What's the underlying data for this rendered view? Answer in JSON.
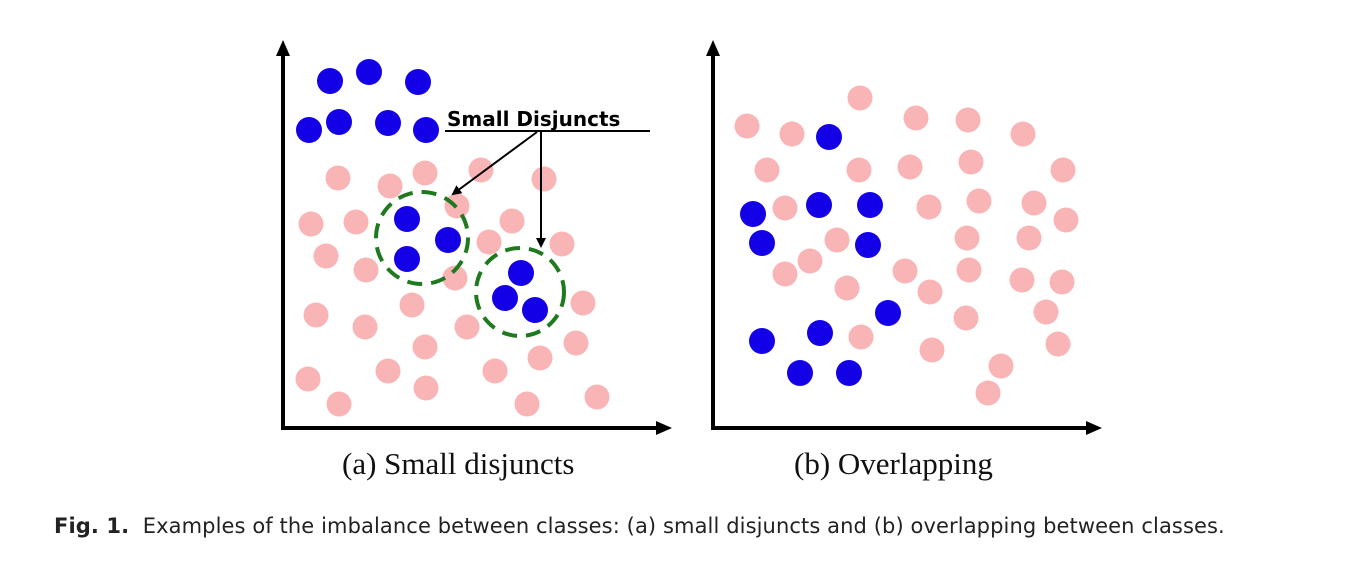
{
  "colors": {
    "majority": "#f9b4b6",
    "minority": "#1400e6",
    "disjunct_ring": "#1f7a1f",
    "axis": "#000000"
  },
  "panel_a": {
    "caption": "(a) Small disjuncts",
    "annotation": "Small Disjuncts",
    "points": {
      "minority": [
        [
          330,
          81
        ],
        [
          369,
          72
        ],
        [
          418,
          82
        ],
        [
          309,
          130
        ],
        [
          339,
          122
        ],
        [
          388,
          123
        ],
        [
          426,
          130
        ],
        [
          407,
          219
        ],
        [
          448,
          240
        ],
        [
          407,
          259
        ],
        [
          521,
          273
        ],
        [
          505,
          298
        ],
        [
          535,
          310
        ]
      ],
      "majority": [
        [
          338,
          178
        ],
        [
          390,
          186
        ],
        [
          425,
          173
        ],
        [
          481,
          170
        ],
        [
          544,
          179
        ],
        [
          311,
          224
        ],
        [
          356,
          222
        ],
        [
          457,
          206
        ],
        [
          512,
          221
        ],
        [
          489,
          242
        ],
        [
          562,
          244
        ],
        [
          326,
          256
        ],
        [
          366,
          270
        ],
        [
          455,
          278
        ],
        [
          583,
          303
        ],
        [
          316,
          315
        ],
        [
          365,
          327
        ],
        [
          412,
          305
        ],
        [
          467,
          327
        ],
        [
          576,
          343
        ],
        [
          425,
          347
        ],
        [
          540,
          358
        ],
        [
          308,
          379
        ],
        [
          388,
          371
        ],
        [
          426,
          388
        ],
        [
          495,
          371
        ],
        [
          339,
          404
        ],
        [
          527,
          404
        ],
        [
          597,
          397
        ]
      ]
    }
  },
  "panel_b": {
    "caption": "(b) Overlapping",
    "points": {
      "minority": [
        [
          829,
          137
        ],
        [
          753,
          214
        ],
        [
          819,
          205
        ],
        [
          870,
          205
        ],
        [
          762,
          243
        ],
        [
          868,
          245
        ],
        [
          888,
          313
        ],
        [
          762,
          341
        ],
        [
          820,
          333
        ],
        [
          800,
          373
        ],
        [
          849,
          373
        ]
      ],
      "majority": [
        [
          860,
          98
        ],
        [
          747,
          126
        ],
        [
          792,
          134
        ],
        [
          916,
          118
        ],
        [
          968,
          120
        ],
        [
          1023,
          134
        ],
        [
          767,
          170
        ],
        [
          859,
          170
        ],
        [
          910,
          167
        ],
        [
          971,
          162
        ],
        [
          1063,
          170
        ],
        [
          785,
          208
        ],
        [
          929,
          207
        ],
        [
          979,
          201
        ],
        [
          1034,
          203
        ],
        [
          1066,
          220
        ],
        [
          837,
          240
        ],
        [
          967,
          238
        ],
        [
          1029,
          238
        ],
        [
          785,
          274
        ],
        [
          810,
          261
        ],
        [
          905,
          271
        ],
        [
          969,
          270
        ],
        [
          1022,
          280
        ],
        [
          1062,
          282
        ],
        [
          847,
          288
        ],
        [
          930,
          292
        ],
        [
          966,
          318
        ],
        [
          1046,
          312
        ],
        [
          861,
          337
        ],
        [
          932,
          350
        ],
        [
          1058,
          344
        ],
        [
          1001,
          366
        ],
        [
          988,
          393
        ]
      ]
    }
  },
  "caption": {
    "label": "Fig. 1.",
    "text": "Examples of the imbalance between classes: (a) small disjuncts and (b) overlapping between classes."
  }
}
